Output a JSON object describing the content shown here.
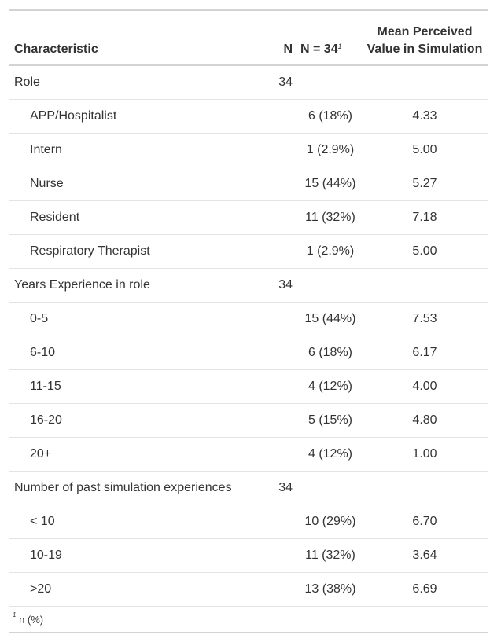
{
  "header": {
    "characteristic": "Characteristic",
    "n": "N",
    "total": "N = 34",
    "total_footnote_mark": "1",
    "mean_line1": "Mean Perceived",
    "mean_line2": "Value in Simulation"
  },
  "rows": [
    {
      "label": "Role",
      "n": "34",
      "total": "",
      "mean": "",
      "indent": false
    },
    {
      "label": "APP/Hospitalist",
      "n": "",
      "total": "6 (18%)",
      "mean": "4.33",
      "indent": true
    },
    {
      "label": "Intern",
      "n": "",
      "total": "1 (2.9%)",
      "mean": "5.00",
      "indent": true
    },
    {
      "label": "Nurse",
      "n": "",
      "total": "15 (44%)",
      "mean": "5.27",
      "indent": true
    },
    {
      "label": "Resident",
      "n": "",
      "total": "11 (32%)",
      "mean": "7.18",
      "indent": true
    },
    {
      "label": "Respiratory Therapist",
      "n": "",
      "total": "1 (2.9%)",
      "mean": "5.00",
      "indent": true
    },
    {
      "label": "Years Experience in role",
      "n": "34",
      "total": "",
      "mean": "",
      "indent": false
    },
    {
      "label": "0-5",
      "n": "",
      "total": "15 (44%)",
      "mean": "7.53",
      "indent": true
    },
    {
      "label": "6-10",
      "n": "",
      "total": "6 (18%)",
      "mean": "6.17",
      "indent": true
    },
    {
      "label": "11-15",
      "n": "",
      "total": "4 (12%)",
      "mean": "4.00",
      "indent": true
    },
    {
      "label": "16-20",
      "n": "",
      "total": "5 (15%)",
      "mean": "4.80",
      "indent": true
    },
    {
      "label": "20+",
      "n": "",
      "total": "4 (12%)",
      "mean": "1.00",
      "indent": true
    },
    {
      "label": "Number of past simulation experiences",
      "n": "34",
      "total": "",
      "mean": "",
      "indent": false
    },
    {
      "label": "< 10",
      "n": "",
      "total": "10 (29%)",
      "mean": "6.70",
      "indent": true
    },
    {
      "label": "10-19",
      "n": "",
      "total": "11 (32%)",
      "mean": "3.64",
      "indent": true
    },
    {
      "label": ">20",
      "n": "",
      "total": "13 (38%)",
      "mean": "6.69",
      "indent": true
    }
  ],
  "footnote": {
    "mark": "1",
    "text": "n (%)"
  }
}
